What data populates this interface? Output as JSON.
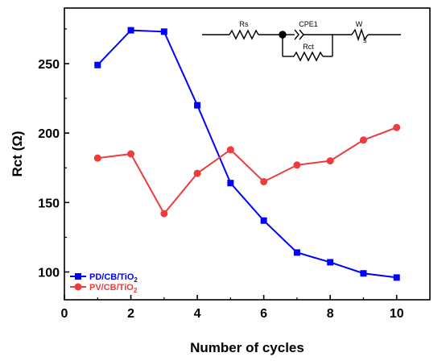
{
  "chart_data": {
    "type": "line",
    "xlabel": "Number of cycles",
    "ylabel": "Rct (Ω)",
    "xlim": [
      0,
      11
    ],
    "ylim": [
      80,
      290
    ],
    "xticks": [
      0,
      2,
      4,
      6,
      8,
      10
    ],
    "yticks": [
      100,
      150,
      200,
      250
    ],
    "grid": false,
    "legend_position": "bottom-left",
    "series": [
      {
        "name": "PD/CB/TiO2",
        "label_main": "PD/CB/TiO",
        "label_sub": "2",
        "color": "#0000ff",
        "marker": "square",
        "x": [
          1,
          2,
          3,
          4,
          5,
          6,
          7,
          8,
          9,
          10
        ],
        "y": [
          249,
          274,
          273,
          220,
          164,
          137,
          114,
          107,
          99,
          96
        ]
      },
      {
        "name": "PV/CB/TiO2",
        "label_main": "PV/CB/TiO",
        "label_sub": "2",
        "color": "#ee3b3b",
        "marker": "circle",
        "x": [
          1,
          2,
          3,
          4,
          5,
          6,
          7,
          8,
          9,
          10
        ],
        "y": [
          182,
          185,
          142,
          171,
          188,
          165,
          177,
          180,
          195,
          204
        ]
      }
    ],
    "inset_circuit": {
      "labels": {
        "rs": "Rs",
        "cpe": "CPE1",
        "rct": "Rct",
        "w": "W",
        "w_sub": "s"
      }
    }
  }
}
